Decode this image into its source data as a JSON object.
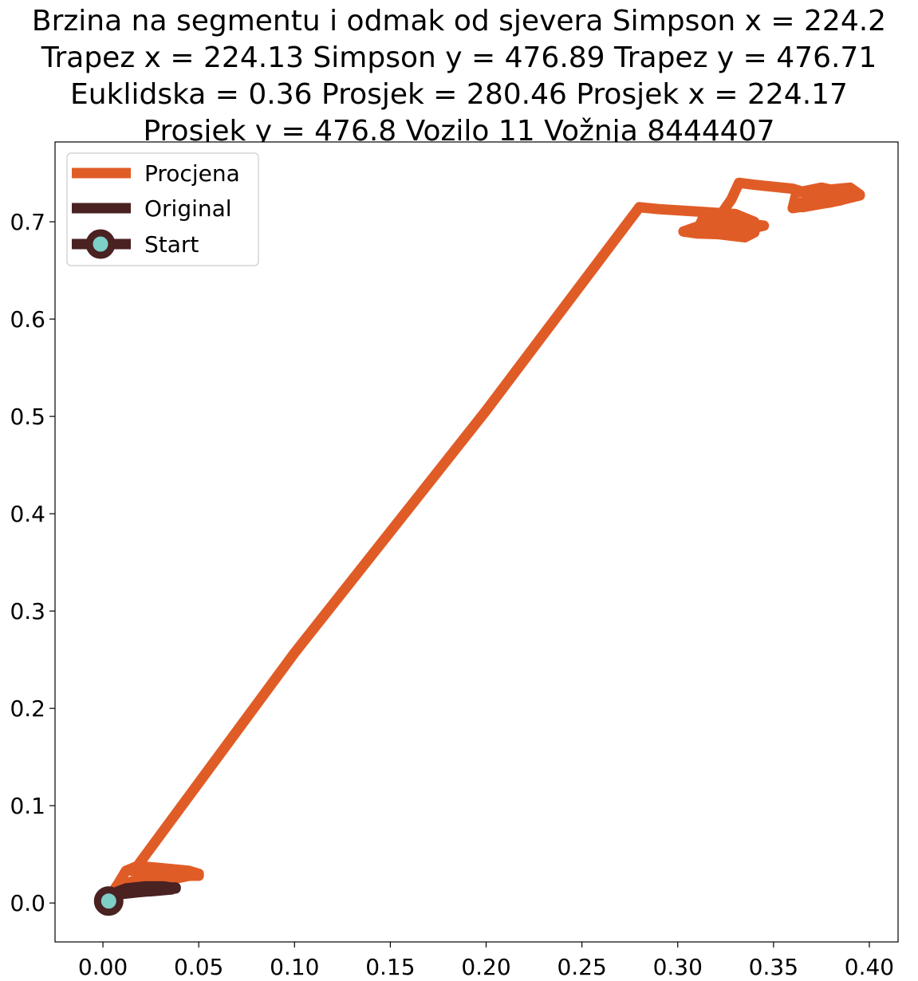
{
  "chart_data": {
    "type": "line",
    "title_lines": [
      "Brzina na segmentu i odmak od sjevera Simpson x = 224.2",
      "Trapez x = 224.13 Simpson y = 476.89 Trapez y = 476.71",
      "Euklidska = 0.36 Prosjek = 280.46 Prosjek x = 224.17",
      "Prosjek y = 476.8 Vozilo 11 Vožnja 8444407"
    ],
    "xlabel": "",
    "ylabel": "",
    "xlim": [
      -0.025,
      0.415
    ],
    "ylim": [
      -0.04,
      0.782
    ],
    "xticks": [
      0.0,
      0.05,
      0.1,
      0.15,
      0.2,
      0.25,
      0.3,
      0.35,
      0.4
    ],
    "xtick_labels": [
      "0.00",
      "0.05",
      "0.10",
      "0.15",
      "0.20",
      "0.25",
      "0.30",
      "0.35",
      "0.40"
    ],
    "yticks": [
      0.0,
      0.1,
      0.2,
      0.3,
      0.4,
      0.5,
      0.6,
      0.7
    ],
    "ytick_labels": [
      "0.0",
      "0.1",
      "0.2",
      "0.3",
      "0.4",
      "0.5",
      "0.6",
      "0.7"
    ],
    "grid": false,
    "legend_position": "top-left",
    "series": [
      {
        "name": "Procjena",
        "color": "#e05c27",
        "x": [
          0.0,
          0.003,
          0.008,
          0.012,
          0.018,
          0.03,
          0.045,
          0.05,
          0.04,
          0.025,
          0.012,
          0.008,
          0.015,
          0.03,
          0.046,
          0.05,
          0.035,
          0.018,
          0.015,
          0.025,
          0.04,
          0.05,
          0.03,
          0.018,
          0.1,
          0.2,
          0.28,
          0.29,
          0.33,
          0.34,
          0.31,
          0.303,
          0.31,
          0.325,
          0.345,
          0.32,
          0.313,
          0.31,
          0.335,
          0.34,
          0.325,
          0.318,
          0.322,
          0.328,
          0.332,
          0.34,
          0.36,
          0.365,
          0.375,
          0.395,
          0.38,
          0.36,
          0.362,
          0.39,
          0.395,
          0.385,
          0.365,
          0.362,
          0.37,
          0.394
        ],
        "y": [
          0.0,
          0.005,
          0.02,
          0.033,
          0.038,
          0.036,
          0.033,
          0.03,
          0.026,
          0.02,
          0.015,
          0.017,
          0.022,
          0.026,
          0.028,
          0.03,
          0.034,
          0.036,
          0.033,
          0.03,
          0.028,
          0.028,
          0.033,
          0.038,
          0.257,
          0.506,
          0.715,
          0.713,
          0.708,
          0.7,
          0.695,
          0.69,
          0.688,
          0.687,
          0.696,
          0.7,
          0.703,
          0.69,
          0.684,
          0.689,
          0.698,
          0.702,
          0.706,
          0.723,
          0.74,
          0.738,
          0.734,
          0.731,
          0.735,
          0.727,
          0.72,
          0.714,
          0.73,
          0.735,
          0.728,
          0.722,
          0.715,
          0.718,
          0.722,
          0.727
        ]
      },
      {
        "name": "Original",
        "color": "#4a2222",
        "x": [
          0.003,
          0.006,
          0.01,
          0.018,
          0.028,
          0.038,
          0.036,
          0.025,
          0.015,
          0.008,
          0.012,
          0.022,
          0.032,
          0.038,
          0.03,
          0.018,
          0.009,
          0.005,
          0.003
        ],
        "y": [
          0.002,
          0.006,
          0.011,
          0.014,
          0.016,
          0.016,
          0.014,
          0.012,
          0.011,
          0.012,
          0.015,
          0.017,
          0.017,
          0.015,
          0.013,
          0.011,
          0.009,
          0.005,
          0.002
        ]
      }
    ],
    "start": {
      "name": "Start",
      "x": 0.003,
      "y": 0.002,
      "marker_face": "#7ecfc8",
      "marker_edge": "#4a2222"
    }
  }
}
